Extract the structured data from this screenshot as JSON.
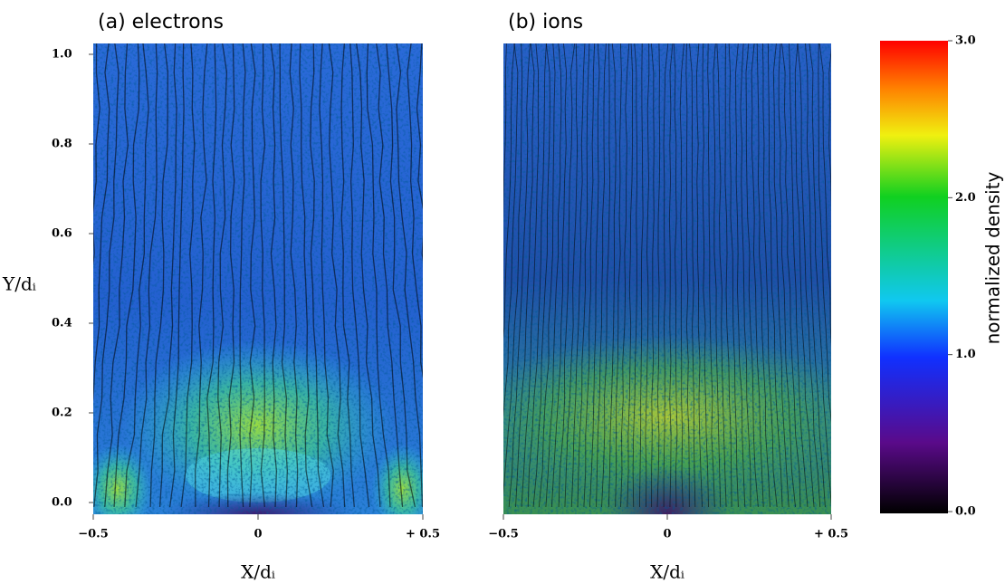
{
  "chart_data": [
    {
      "type": "heatmap",
      "title": "(a) electrons",
      "xlabel": "X/dᵢ",
      "ylabel": "Y/dᵢ",
      "xlim": [
        -0.5,
        0.5
      ],
      "ylim": [
        0,
        1.0
      ],
      "xticks": [
        {
          "value": -0.5,
          "label": "−0.5"
        },
        0,
        {
          "value": 0.5,
          "label": "+ 0.5"
        }
      ],
      "yticks": [
        {
          "value": 0,
          "label": "0.0"
        },
        0.2,
        0.4,
        0.6,
        0.8,
        {
          "value": 1.0,
          "label": "1.0"
        }
      ]
    },
    {
      "type": "heatmap",
      "title": "(b) ions",
      "xlabel": "X/dᵢ",
      "xlim": [
        -0.5,
        0.5
      ],
      "ylim": [
        0,
        1.0
      ],
      "xticks": [
        {
          "value": -0.5,
          "label": "−0.5"
        },
        0,
        {
          "value": 0.5,
          "label": "+ 0.5"
        }
      ]
    }
  ],
  "colorbar": {
    "label": "normalized density",
    "lim": [
      0,
      3.0
    ],
    "ticks": [
      {
        "value": 0,
        "label": "0.0"
      },
      {
        "value": 1.0,
        "label": "1.0"
      },
      {
        "value": 2.0,
        "label": "2.0"
      },
      {
        "value": 3.0,
        "label": "3.0"
      }
    ]
  }
}
